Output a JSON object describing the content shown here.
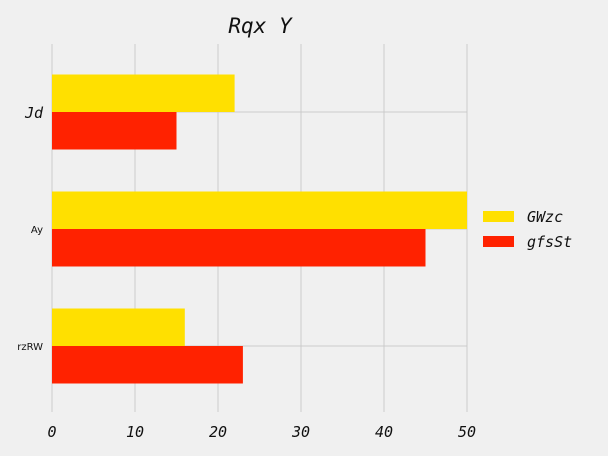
{
  "chart_data": {
    "type": "bar",
    "orientation": "horizontal",
    "title": "Rqx Y",
    "categories": [
      "Jd",
      "Ay",
      "rzRW"
    ],
    "series": [
      {
        "name": "GWzc",
        "values": [
          22,
          50,
          16
        ],
        "color": "#FFE000"
      },
      {
        "name": "gfsSt",
        "values": [
          15,
          45,
          23
        ],
        "color": "#FF2200"
      }
    ],
    "xlim": [
      0,
      50
    ],
    "xticks": [
      "0",
      "10",
      "20",
      "30",
      "40",
      "50"
    ],
    "grid": true,
    "legend_position": "right"
  }
}
